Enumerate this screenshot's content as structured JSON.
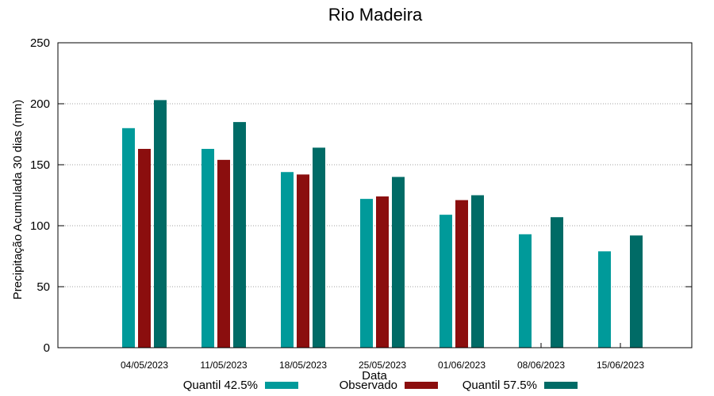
{
  "chart_data": {
    "type": "bar",
    "title": "Rio Madeira",
    "xlabel": "Data",
    "ylabel": "Precipitação Acumulada 30 dias (mm)",
    "ylim": [
      0,
      250
    ],
    "yticks": [
      0,
      50,
      100,
      150,
      200,
      250
    ],
    "grid": true,
    "legend_position": "bottom",
    "categories": [
      "04/05/2023",
      "11/05/2023",
      "18/05/2023",
      "25/05/2023",
      "01/06/2023",
      "08/06/2023",
      "15/06/2023"
    ],
    "series": [
      {
        "name": "Quantil 42.5%",
        "color": "#009a9a",
        "values": [
          180,
          163,
          144,
          122,
          109,
          93,
          79
        ]
      },
      {
        "name": "Observado",
        "color": "#8b0e0e",
        "values": [
          163,
          154,
          142,
          124,
          121,
          null,
          null
        ]
      },
      {
        "name": "Quantil 57.5%",
        "color": "#006b66",
        "values": [
          203,
          185,
          164,
          140,
          125,
          107,
          92
        ]
      }
    ]
  }
}
